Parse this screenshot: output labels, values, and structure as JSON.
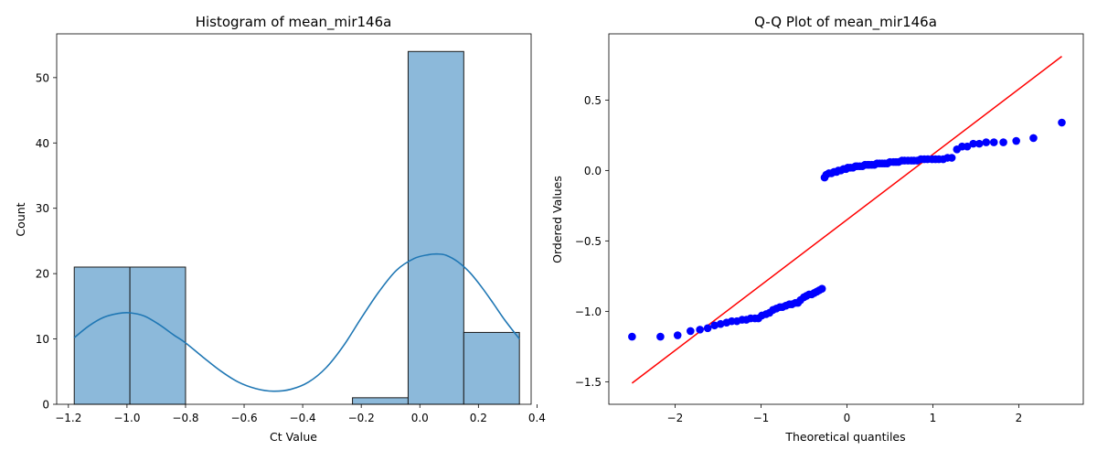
{
  "chart_data": [
    {
      "type": "bar",
      "subtype": "histogram-with-kde",
      "title": "Histogram of mean_mir146a",
      "xlabel": "Ct Value",
      "ylabel": "Count",
      "xlim": [
        -1.24,
        0.38
      ],
      "ylim": [
        0,
        56.7
      ],
      "xticks": [
        -1.2,
        -1.0,
        -0.8,
        -0.6,
        -0.4,
        -0.2,
        0.0,
        0.2,
        0.4
      ],
      "xtick_labels": [
        "−1.2",
        "−1.0",
        "−0.8",
        "−0.6",
        "−0.4",
        "−0.2",
        "0.0",
        "0.2",
        "0.4"
      ],
      "yticks": [
        0,
        10,
        20,
        30,
        40,
        50
      ],
      "ytick_labels": [
        "0",
        "10",
        "20",
        "30",
        "40",
        "50"
      ],
      "bins": [
        {
          "x0": -1.18,
          "x1": -0.99,
          "count": 21
        },
        {
          "x0": -0.99,
          "x1": -0.8,
          "count": 21
        },
        {
          "x0": -0.8,
          "x1": -0.61,
          "count": 0
        },
        {
          "x0": -0.61,
          "x1": -0.42,
          "count": 0
        },
        {
          "x0": -0.42,
          "x1": -0.23,
          "count": 0
        },
        {
          "x0": -0.23,
          "x1": -0.04,
          "count": 1
        },
        {
          "x0": -0.04,
          "x1": 0.15,
          "count": 54
        },
        {
          "x0": 0.15,
          "x1": 0.34,
          "count": 11
        }
      ],
      "kde": {
        "x": [
          -1.18,
          -1.13,
          -1.08,
          -1.03,
          -0.99,
          -0.94,
          -0.89,
          -0.84,
          -0.8,
          -0.74,
          -0.68,
          -0.62,
          -0.56,
          -0.5,
          -0.44,
          -0.38,
          -0.32,
          -0.26,
          -0.2,
          -0.14,
          -0.08,
          -0.02,
          0.03,
          0.06,
          0.09,
          0.13,
          0.17,
          0.21,
          0.25,
          0.29,
          0.34
        ],
        "y": [
          10.2,
          12.0,
          13.3,
          13.9,
          14.0,
          13.5,
          12.2,
          10.6,
          9.4,
          7.2,
          5.1,
          3.4,
          2.4,
          2.0,
          2.3,
          3.4,
          5.6,
          9.0,
          13.2,
          17.2,
          20.5,
          22.3,
          22.9,
          23.0,
          22.8,
          21.8,
          20.2,
          18.0,
          15.5,
          12.9,
          10.0
        ]
      },
      "colors": {
        "bar_fill": "#8cb9da",
        "bar_edge": "#1a1a1a",
        "kde": "#1f77b4"
      }
    },
    {
      "type": "scatter",
      "subtype": "qq-plot",
      "title": "Q-Q Plot of mean_mir146a",
      "xlabel": "Theoretical quantiles",
      "ylabel": "Ordered Values",
      "xlim": [
        -2.77,
        2.75
      ],
      "ylim": [
        -1.66,
        0.97
      ],
      "xticks": [
        -2,
        -1,
        0,
        1,
        2
      ],
      "xtick_labels": [
        "−2",
        "−1",
        "0",
        "1",
        "2"
      ],
      "yticks": [
        -1.5,
        -1.0,
        -0.5,
        0.0,
        0.5
      ],
      "ytick_labels": [
        "−1.5",
        "−1.0",
        "−0.5",
        "0.0",
        "0.5"
      ],
      "reference_line": {
        "x": [
          -2.5,
          2.5
        ],
        "y": [
          -1.51,
          0.81
        ]
      },
      "points": {
        "x": [
          -2.5,
          -2.17,
          -1.97,
          -1.82,
          -1.71,
          -1.62,
          -1.54,
          -1.47,
          -1.4,
          -1.34,
          -1.28,
          -1.22,
          -1.17,
          -1.12,
          -1.07,
          -1.03,
          -0.99,
          -0.94,
          -0.9,
          -0.86,
          -0.82,
          -0.78,
          -0.75,
          -0.71,
          -0.67,
          -0.64,
          -0.6,
          -0.57,
          -0.54,
          -0.5,
          -0.47,
          -0.44,
          -0.41,
          -0.38,
          -0.35,
          -0.32,
          -0.29,
          -0.26,
          -0.24,
          -0.21,
          -0.18,
          -0.15,
          -0.12,
          -0.1,
          -0.07,
          -0.04,
          -0.01,
          0.01,
          0.04,
          0.07,
          0.1,
          0.12,
          0.15,
          0.18,
          0.21,
          0.24,
          0.26,
          0.29,
          0.32,
          0.35,
          0.38,
          0.41,
          0.44,
          0.47,
          0.5,
          0.54,
          0.57,
          0.6,
          0.64,
          0.67,
          0.71,
          0.75,
          0.78,
          0.82,
          0.86,
          0.9,
          0.94,
          0.99,
          1.03,
          1.07,
          1.12,
          1.17,
          1.22,
          1.28,
          1.34,
          1.4,
          1.47,
          1.54,
          1.62,
          1.71,
          1.82,
          1.97,
          2.17,
          2.5
        ],
        "y": [
          -1.18,
          -1.18,
          -1.17,
          -1.14,
          -1.13,
          -1.12,
          -1.1,
          -1.09,
          -1.08,
          -1.07,
          -1.07,
          -1.06,
          -1.06,
          -1.05,
          -1.05,
          -1.05,
          -1.03,
          -1.02,
          -1.01,
          -0.99,
          -0.98,
          -0.97,
          -0.97,
          -0.96,
          -0.95,
          -0.95,
          -0.94,
          -0.94,
          -0.92,
          -0.9,
          -0.89,
          -0.88,
          -0.88,
          -0.87,
          -0.86,
          -0.85,
          -0.84,
          -0.05,
          -0.03,
          -0.02,
          -0.02,
          -0.01,
          -0.01,
          0.0,
          0.0,
          0.01,
          0.01,
          0.02,
          0.02,
          0.02,
          0.03,
          0.03,
          0.03,
          0.03,
          0.04,
          0.04,
          0.04,
          0.04,
          0.04,
          0.05,
          0.05,
          0.05,
          0.05,
          0.05,
          0.06,
          0.06,
          0.06,
          0.06,
          0.07,
          0.07,
          0.07,
          0.07,
          0.07,
          0.07,
          0.08,
          0.08,
          0.08,
          0.08,
          0.08,
          0.08,
          0.08,
          0.09,
          0.09,
          0.15,
          0.17,
          0.17,
          0.19,
          0.19,
          0.2,
          0.2,
          0.2,
          0.21,
          0.23,
          0.34
        ]
      },
      "colors": {
        "points": "#0000ff",
        "line": "#ff0000"
      }
    }
  ]
}
